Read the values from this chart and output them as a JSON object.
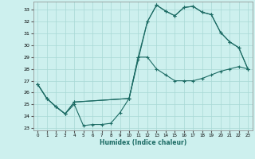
{
  "xlabel": "Humidex (Indice chaleur)",
  "bg_color": "#cdf0ee",
  "grid_color": "#a8d8d5",
  "line_color": "#1c6b64",
  "xlim": [
    -0.5,
    23.5
  ],
  "ylim": [
    22.8,
    33.7
  ],
  "yticks": [
    23,
    24,
    25,
    26,
    27,
    28,
    29,
    30,
    31,
    32,
    33
  ],
  "xticks": [
    0,
    1,
    2,
    3,
    4,
    5,
    6,
    7,
    8,
    9,
    10,
    11,
    12,
    13,
    14,
    15,
    16,
    17,
    18,
    19,
    20,
    21,
    22,
    23
  ],
  "line1_x": [
    0,
    1,
    2,
    3,
    4,
    5,
    6,
    7,
    8,
    9,
    10,
    11,
    12,
    13,
    14,
    15,
    16,
    17,
    18,
    19,
    20,
    21,
    22,
    23
  ],
  "line1_y": [
    26.7,
    25.5,
    24.8,
    24.2,
    25.0,
    23.2,
    23.3,
    23.3,
    23.4,
    24.3,
    25.5,
    28.8,
    32.0,
    33.4,
    32.9,
    32.5,
    33.2,
    33.3,
    32.8,
    32.6,
    31.1,
    30.3,
    29.8,
    28.0
  ],
  "line2_x": [
    0,
    1,
    2,
    3,
    4,
    10,
    11,
    12,
    13,
    14,
    15,
    16,
    17,
    18,
    19,
    20,
    21,
    22,
    23
  ],
  "line2_y": [
    26.7,
    25.5,
    24.8,
    24.2,
    25.2,
    25.5,
    29.0,
    29.0,
    28.0,
    27.5,
    27.0,
    27.0,
    27.0,
    27.2,
    27.5,
    27.8,
    28.0,
    28.2,
    28.0
  ],
  "line3_x": [
    0,
    1,
    2,
    3,
    4,
    10,
    11,
    12,
    13,
    14,
    15,
    16,
    17,
    18,
    19,
    20,
    21,
    22,
    23
  ],
  "line3_y": [
    26.7,
    25.5,
    24.8,
    24.2,
    25.2,
    25.5,
    29.0,
    32.0,
    33.4,
    32.9,
    32.5,
    33.2,
    33.3,
    32.8,
    32.6,
    31.1,
    30.3,
    29.8,
    28.0
  ]
}
